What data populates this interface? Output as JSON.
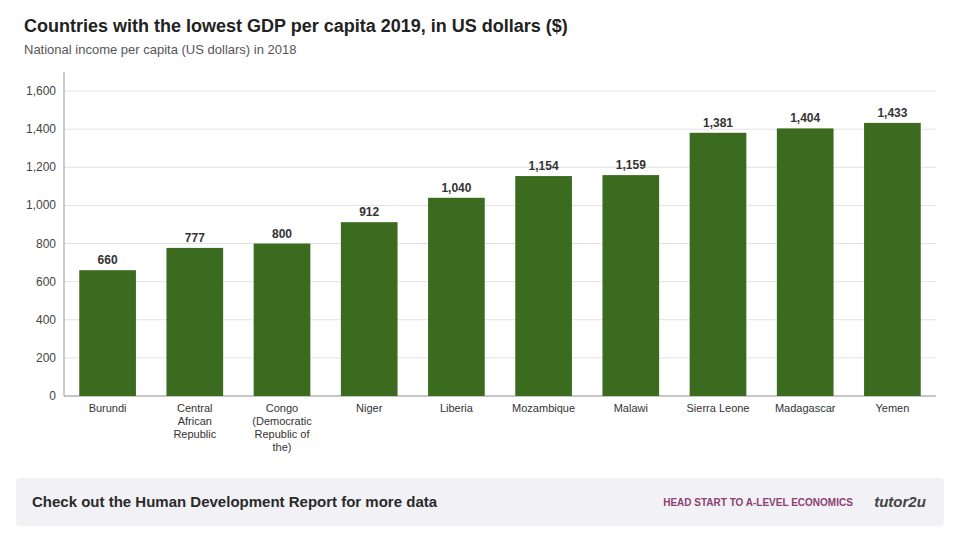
{
  "chart_data": {
    "type": "bar",
    "title": "Countries with the lowest GDP per capita 2019, in US dollars ($)",
    "subtitle": "National income per capita (US dollars) in 2018",
    "categories": [
      "Burundi",
      "Central\nAfrican\nRepublic",
      "Congo\n(Democratic\nRepublic of\nthe)",
      "Niger",
      "Liberia",
      "Mozambique",
      "Malawi",
      "Sierra Leone",
      "Madagascar",
      "Yemen"
    ],
    "values": [
      660,
      777,
      800,
      912,
      1040,
      1154,
      1159,
      1381,
      1404,
      1433
    ],
    "value_labels": [
      "660",
      "777",
      "800",
      "912",
      "1,040",
      "1,154",
      "1,159",
      "1,381",
      "1,404",
      "1,433"
    ],
    "data_labels": true,
    "color": "#3a6b1e",
    "ylim": [
      0,
      1700
    ],
    "yticks": [
      0,
      200,
      400,
      600,
      800,
      {
        "value": 1000,
        "label": "1,000"
      },
      {
        "value": 1200,
        "label": "1,200"
      },
      {
        "value": 1400,
        "label": "1,400"
      },
      {
        "value": 1600,
        "label": "1,600"
      }
    ],
    "grid": true,
    "annotations": [
      "Check out the Human Development Report for more data",
      "HEAD START TO A-LEVEL ECONOMICS",
      "tutor2u"
    ]
  }
}
